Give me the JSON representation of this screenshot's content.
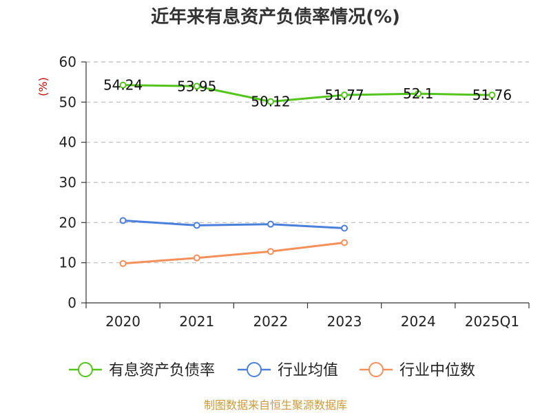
{
  "chart_data": {
    "type": "line",
    "title": "近年来有息资产负债率情况(%)",
    "ylabel": "(%)",
    "ylim": [
      0,
      60
    ],
    "yticks": [
      0,
      10,
      20,
      30,
      40,
      50,
      60
    ],
    "grid": true,
    "legend_position": "bottom",
    "categories": [
      "2020",
      "2021",
      "2022",
      "2023",
      "2024",
      "2025Q1"
    ],
    "series": [
      {
        "name": "有息资产负债率",
        "color": "#52c41a",
        "values": [
          54.24,
          53.95,
          50.12,
          51.77,
          52.1,
          51.76
        ],
        "labels": [
          "54.24",
          "53.95",
          "50.12",
          "51.77",
          "52.1",
          "51.76"
        ]
      },
      {
        "name": "行业均值",
        "color": "#4a7fdc",
        "values": [
          20.5,
          19.3,
          19.6,
          18.6,
          null,
          null
        ]
      },
      {
        "name": "行业中位数",
        "color": "#f5905a",
        "values": [
          9.8,
          11.2,
          12.8,
          15.0,
          null,
          null
        ]
      }
    ]
  },
  "footer": "制图数据来自恒生聚源数据库"
}
